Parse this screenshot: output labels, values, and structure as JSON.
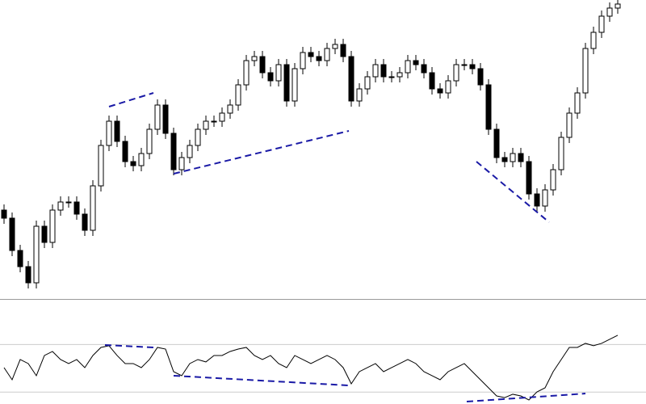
{
  "chart_data": [
    {
      "type": "candlestick",
      "color": "#000000",
      "ylim": [
        0,
        370
      ],
      "open": [
        110,
        100,
        60,
        40,
        20,
        90,
        70,
        110,
        120,
        120,
        105,
        85,
        140,
        190,
        220,
        195,
        170,
        165,
        180,
        210,
        240,
        205,
        160,
        175,
        190,
        210,
        220,
        220,
        230,
        240,
        265,
        295,
        300,
        280,
        270,
        290,
        245,
        285,
        305,
        300,
        295,
        310,
        315,
        300,
        245,
        260,
        275,
        290,
        275,
        275,
        280,
        295,
        290,
        280,
        260,
        255,
        270,
        290,
        290,
        285,
        265,
        210,
        175,
        170,
        180,
        170,
        130,
        115,
        135,
        160,
        200,
        230,
        255,
        310,
        330,
        350,
        360
      ],
      "high": [
        117,
        107,
        67,
        47,
        97,
        97,
        117,
        127,
        127,
        127,
        112,
        147,
        197,
        227,
        227,
        202,
        177,
        187,
        217,
        247,
        247,
        212,
        182,
        197,
        217,
        227,
        227,
        237,
        247,
        272,
        302,
        307,
        307,
        287,
        297,
        297,
        292,
        312,
        312,
        307,
        317,
        322,
        322,
        307,
        267,
        282,
        297,
        297,
        282,
        287,
        302,
        302,
        297,
        287,
        267,
        277,
        297,
        297,
        297,
        292,
        272,
        217,
        182,
        187,
        187,
        177,
        137,
        142,
        167,
        207,
        237,
        262,
        317,
        337,
        357,
        367,
        370
      ],
      "low": [
        93,
        53,
        33,
        13,
        13,
        63,
        63,
        103,
        113,
        98,
        78,
        78,
        133,
        183,
        188,
        163,
        158,
        158,
        173,
        203,
        198,
        153,
        153,
        168,
        183,
        203,
        213,
        213,
        223,
        233,
        258,
        288,
        273,
        263,
        263,
        238,
        238,
        278,
        293,
        288,
        288,
        303,
        293,
        238,
        238,
        253,
        268,
        268,
        268,
        268,
        273,
        283,
        273,
        253,
        248,
        248,
        263,
        283,
        278,
        258,
        203,
        168,
        163,
        163,
        163,
        123,
        108,
        108,
        128,
        153,
        193,
        223,
        248,
        303,
        323,
        343,
        353
      ],
      "close": [
        100,
        60,
        40,
        20,
        90,
        70,
        110,
        120,
        120,
        105,
        85,
        140,
        190,
        220,
        195,
        170,
        165,
        180,
        210,
        240,
        205,
        160,
        175,
        190,
        210,
        220,
        220,
        230,
        240,
        265,
        295,
        300,
        280,
        270,
        290,
        245,
        285,
        305,
        300,
        295,
        310,
        315,
        300,
        245,
        260,
        275,
        290,
        275,
        275,
        280,
        295,
        290,
        280,
        260,
        255,
        270,
        290,
        290,
        285,
        265,
        210,
        175,
        170,
        180,
        170,
        130,
        115,
        135,
        160,
        200,
        230,
        255,
        310,
        330,
        350,
        360,
        365
      ],
      "trendline_color": "#1a1aa6",
      "trendlines": [
        {
          "x": [
            13,
            18.5
          ],
          "y": [
            238,
            255
          ]
        },
        {
          "x": [
            21,
            42.7
          ],
          "y": [
            155,
            208
          ]
        },
        {
          "x": [
            58.5,
            67.5
          ],
          "y": [
            170,
            95
          ]
        }
      ]
    },
    {
      "type": "line",
      "color": "#000000",
      "ylim": [
        20,
        107
      ],
      "yticks": [
        70,
        30
      ],
      "grid": true,
      "values": [
        50.6,
        40.4,
        57.4,
        54,
        43.8,
        60.8,
        64.2,
        57.4,
        54,
        57.4,
        50.6,
        60.8,
        67.6,
        69,
        60.8,
        54,
        54,
        50.6,
        57.4,
        67.6,
        66.2,
        47.2,
        43.8,
        54,
        57.4,
        55.4,
        60.8,
        60.8,
        64.2,
        66.2,
        67.6,
        60.8,
        57.4,
        60.8,
        54,
        50.6,
        60.8,
        57.4,
        54,
        57.4,
        60.8,
        57.4,
        50.6,
        37,
        47.2,
        50.6,
        54,
        47.2,
        50.6,
        54,
        57.4,
        54,
        47.2,
        43.8,
        40.4,
        47.2,
        50.6,
        54,
        47.2,
        40.4,
        33.6,
        26.8,
        25.4,
        28.2,
        26.8,
        23.4,
        30.2,
        33.6,
        47.2,
        57.4,
        67.6,
        67.6,
        71,
        69,
        71,
        74.4,
        77.8
      ],
      "trendline_color": "#1a1aa6",
      "trendlines": [
        {
          "x": [
            12.5,
            18.5
          ],
          "y": [
            69.6,
            67.6
          ]
        },
        {
          "x": [
            21,
            42.7
          ],
          "y": [
            43.8,
            35.6
          ]
        },
        {
          "x": [
            57.3,
            72
          ],
          "y": [
            22,
            28.8
          ]
        }
      ]
    }
  ]
}
